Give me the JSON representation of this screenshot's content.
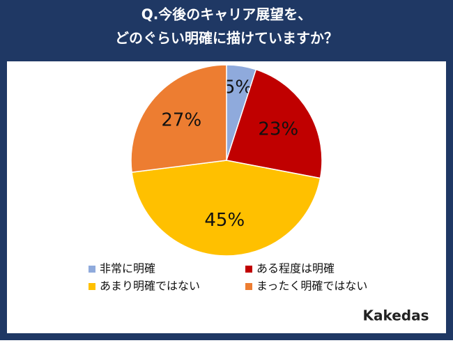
{
  "chart_data": {
    "type": "pie",
    "title_lines": [
      "Q.今後のキャリア展望を、",
      "どのぐらい明確に描けていますか？"
    ],
    "categories": [
      "非常に明確",
      "ある程度は明確",
      "あまり明確ではない",
      "まったく明確ではない"
    ],
    "values": [
      5,
      23,
      45,
      27
    ],
    "value_labels": [
      "5%",
      "23%",
      "45%",
      "27%"
    ],
    "colors": [
      "#8faadc",
      "#c00000",
      "#ffc000",
      "#ed7d31"
    ],
    "legend": "bottom"
  },
  "logo": "Kakedas"
}
